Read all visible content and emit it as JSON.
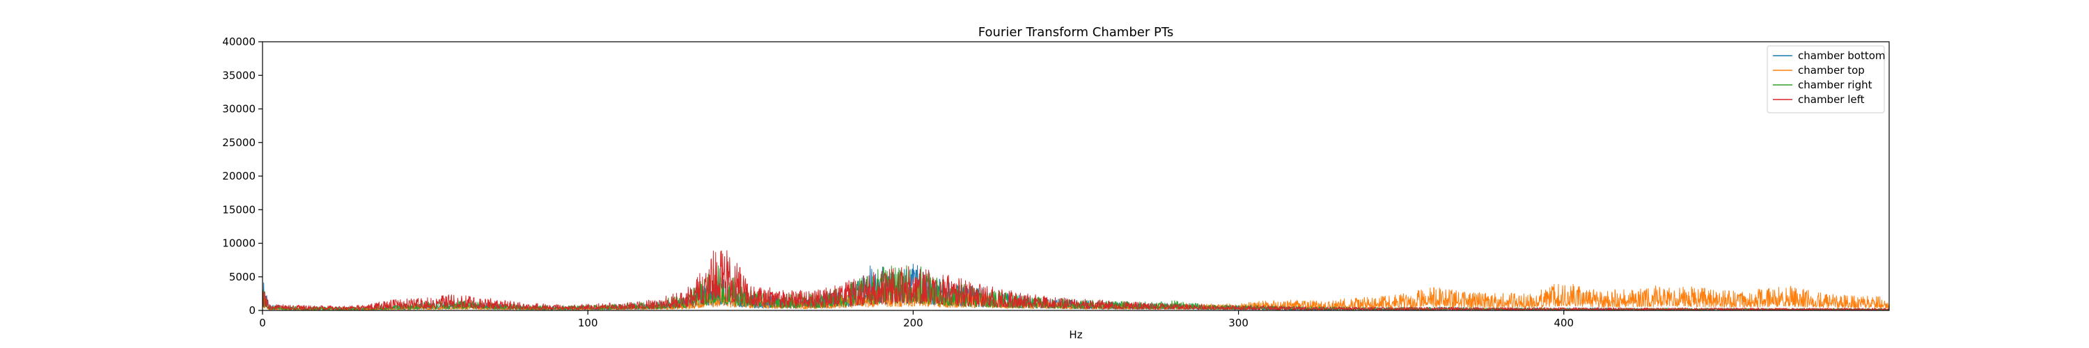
{
  "chart_data": {
    "type": "line",
    "title": "Fourier Transform Chamber PTs",
    "xlabel": "Hz",
    "ylabel": "",
    "xlim": [
      0,
      500
    ],
    "ylim": [
      0,
      40000
    ],
    "xticks": [
      0,
      100,
      200,
      300,
      400
    ],
    "yticks": [
      0,
      5000,
      10000,
      15000,
      20000,
      25000,
      30000,
      35000,
      40000
    ],
    "grid": false,
    "legend_position": "top-right",
    "series": [
      {
        "name": "chamber bottom",
        "color": "#1f77b4",
        "points": [
          [
            0,
            5000
          ],
          [
            2,
            900
          ],
          [
            10,
            600
          ],
          [
            20,
            500
          ],
          [
            30,
            500
          ],
          [
            40,
            800
          ],
          [
            50,
            1100
          ],
          [
            60,
            1400
          ],
          [
            70,
            1100
          ],
          [
            80,
            800
          ],
          [
            90,
            600
          ],
          [
            100,
            700
          ],
          [
            110,
            900
          ],
          [
            120,
            1200
          ],
          [
            130,
            2000
          ],
          [
            135,
            3500
          ],
          [
            140,
            5000
          ],
          [
            145,
            4000
          ],
          [
            150,
            2500
          ],
          [
            160,
            2000
          ],
          [
            170,
            2000
          ],
          [
            180,
            3500
          ],
          [
            185,
            5500
          ],
          [
            188,
            7500
          ],
          [
            192,
            6000
          ],
          [
            196,
            6500
          ],
          [
            200,
            7000
          ],
          [
            205,
            6000
          ],
          [
            210,
            4500
          ],
          [
            220,
            3500
          ],
          [
            230,
            2500
          ],
          [
            240,
            1800
          ],
          [
            250,
            1600
          ],
          [
            260,
            1200
          ],
          [
            270,
            1100
          ],
          [
            280,
            1200
          ],
          [
            290,
            800
          ],
          [
            300,
            700
          ],
          [
            320,
            500
          ],
          [
            340,
            400
          ],
          [
            360,
            500
          ],
          [
            380,
            400
          ],
          [
            400,
            400
          ],
          [
            420,
            350
          ],
          [
            440,
            350
          ],
          [
            460,
            300
          ],
          [
            480,
            300
          ],
          [
            500,
            300
          ]
        ]
      },
      {
        "name": "chamber top",
        "color": "#ff7f0e",
        "points": [
          [
            0,
            3000
          ],
          [
            2,
            600
          ],
          [
            10,
            400
          ],
          [
            20,
            400
          ],
          [
            30,
            400
          ],
          [
            40,
            600
          ],
          [
            50,
            800
          ],
          [
            60,
            1000
          ],
          [
            70,
            800
          ],
          [
            80,
            600
          ],
          [
            90,
            500
          ],
          [
            100,
            600
          ],
          [
            110,
            700
          ],
          [
            120,
            900
          ],
          [
            130,
            1200
          ],
          [
            135,
            2000
          ],
          [
            140,
            3500
          ],
          [
            145,
            3000
          ],
          [
            150,
            2000
          ],
          [
            160,
            1500
          ],
          [
            170,
            1600
          ],
          [
            180,
            2500
          ],
          [
            190,
            3500
          ],
          [
            200,
            4000
          ],
          [
            210,
            3000
          ],
          [
            220,
            2500
          ],
          [
            230,
            2000
          ],
          [
            240,
            1500
          ],
          [
            250,
            1300
          ],
          [
            260,
            1100
          ],
          [
            270,
            1000
          ],
          [
            280,
            1100
          ],
          [
            290,
            1000
          ],
          [
            300,
            1000
          ],
          [
            310,
            1600
          ],
          [
            320,
            1500
          ],
          [
            330,
            1700
          ],
          [
            340,
            2000
          ],
          [
            350,
            2500
          ],
          [
            360,
            3500
          ],
          [
            370,
            2800
          ],
          [
            380,
            2500
          ],
          [
            390,
            2800
          ],
          [
            400,
            4500
          ],
          [
            410,
            3000
          ],
          [
            420,
            3200
          ],
          [
            430,
            3800
          ],
          [
            440,
            3500
          ],
          [
            450,
            3000
          ],
          [
            460,
            3200
          ],
          [
            470,
            3800
          ],
          [
            480,
            2500
          ],
          [
            490,
            2200
          ],
          [
            500,
            2000
          ]
        ]
      },
      {
        "name": "chamber right",
        "color": "#2ca02c",
        "points": [
          [
            0,
            4000
          ],
          [
            2,
            800
          ],
          [
            10,
            600
          ],
          [
            20,
            500
          ],
          [
            30,
            600
          ],
          [
            40,
            900
          ],
          [
            50,
            1300
          ],
          [
            60,
            1600
          ],
          [
            70,
            1200
          ],
          [
            80,
            900
          ],
          [
            90,
            700
          ],
          [
            100,
            800
          ],
          [
            110,
            1000
          ],
          [
            120,
            1300
          ],
          [
            130,
            2500
          ],
          [
            135,
            4500
          ],
          [
            140,
            7000
          ],
          [
            145,
            5000
          ],
          [
            150,
            3000
          ],
          [
            160,
            2500
          ],
          [
            170,
            2500
          ],
          [
            180,
            4000
          ],
          [
            190,
            6500
          ],
          [
            200,
            7000
          ],
          [
            205,
            6000
          ],
          [
            210,
            4500
          ],
          [
            220,
            3500
          ],
          [
            230,
            2500
          ],
          [
            240,
            2000
          ],
          [
            250,
            1700
          ],
          [
            260,
            1500
          ],
          [
            270,
            1300
          ],
          [
            280,
            1500
          ],
          [
            290,
            900
          ],
          [
            300,
            800
          ],
          [
            320,
            600
          ],
          [
            340,
            500
          ],
          [
            360,
            500
          ],
          [
            380,
            400
          ],
          [
            400,
            400
          ],
          [
            420,
            350
          ],
          [
            440,
            350
          ],
          [
            460,
            300
          ],
          [
            480,
            300
          ],
          [
            500,
            300
          ]
        ]
      },
      {
        "name": "chamber left",
        "color": "#d62728",
        "points": [
          [
            0,
            3500
          ],
          [
            2,
            1000
          ],
          [
            10,
            800
          ],
          [
            20,
            700
          ],
          [
            30,
            800
          ],
          [
            40,
            1600
          ],
          [
            50,
            2000
          ],
          [
            60,
            2500
          ],
          [
            70,
            1800
          ],
          [
            80,
            1200
          ],
          [
            90,
            900
          ],
          [
            100,
            1000
          ],
          [
            110,
            1200
          ],
          [
            120,
            1600
          ],
          [
            130,
            3000
          ],
          [
            135,
            6000
          ],
          [
            140,
            10200
          ],
          [
            145,
            8000
          ],
          [
            150,
            4000
          ],
          [
            160,
            3000
          ],
          [
            170,
            3000
          ],
          [
            180,
            4500
          ],
          [
            190,
            6000
          ],
          [
            200,
            6800
          ],
          [
            210,
            5500
          ],
          [
            220,
            4000
          ],
          [
            230,
            3000
          ],
          [
            240,
            2200
          ],
          [
            250,
            1800
          ],
          [
            260,
            1500
          ],
          [
            270,
            1200
          ],
          [
            280,
            1000
          ],
          [
            290,
            900
          ],
          [
            300,
            800
          ],
          [
            320,
            600
          ],
          [
            340,
            500
          ],
          [
            360,
            500
          ],
          [
            380,
            450
          ],
          [
            400,
            450
          ],
          [
            420,
            400
          ],
          [
            440,
            400
          ],
          [
            460,
            350
          ],
          [
            480,
            350
          ],
          [
            500,
            350
          ]
        ]
      }
    ]
  }
}
